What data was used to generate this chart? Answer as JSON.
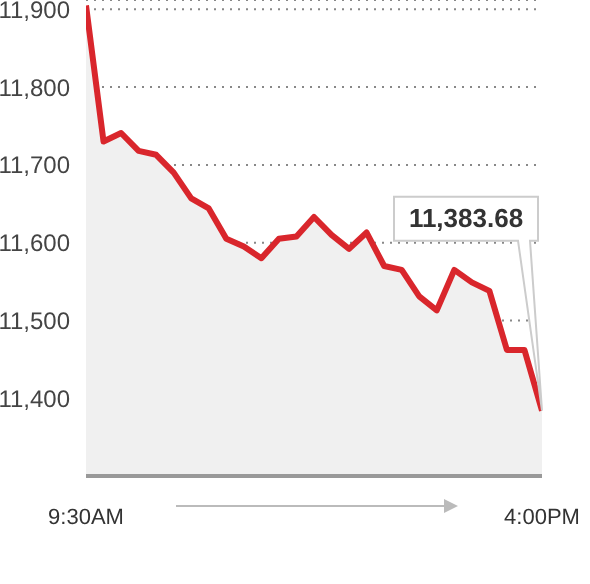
{
  "chart_data": {
    "type": "area",
    "x": [
      9.5,
      9.75,
      10,
      10.25,
      10.5,
      10.75,
      11,
      11.25,
      11.5,
      11.75,
      12,
      12.25,
      12.5,
      12.75,
      13,
      13.25,
      13.5,
      13.75,
      14,
      14.25,
      14.5,
      14.75,
      15,
      15.25,
      15.5,
      15.75,
      16
    ],
    "series": [
      {
        "color": "#d9262c",
        "values": [
          11905,
          11730,
          11741,
          11718,
          11713,
          11690,
          11657,
          11644,
          11605,
          11595,
          11580,
          11605,
          11608,
          11633,
          11610,
          11592,
          11613,
          11570,
          11565,
          11531,
          11513,
          11565,
          11549,
          11538,
          11462,
          11462,
          11384
        ]
      }
    ],
    "xlim": [
      9.5,
      16
    ],
    "xticks": [
      {
        "value": 9.5,
        "label": "9:30AM"
      },
      {
        "value": 16,
        "label": "4:00PM"
      }
    ],
    "ylim": [
      11300,
      11912
    ],
    "yticks": [
      {
        "value": 11400,
        "label": "11,400"
      },
      {
        "value": 11500,
        "label": "11,500"
      },
      {
        "value": 11600,
        "label": "11,600"
      },
      {
        "value": 11700,
        "label": "11,700"
      },
      {
        "value": 11800,
        "label": "11,800"
      },
      {
        "value": 11900,
        "label": "11,900"
      }
    ],
    "grid": "y",
    "annotations": [
      "11,383.68"
    ]
  }
}
